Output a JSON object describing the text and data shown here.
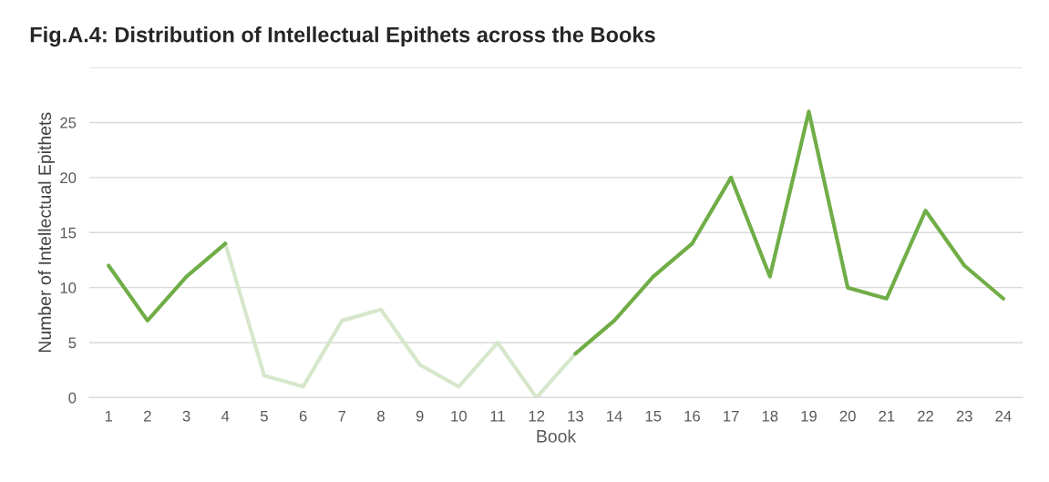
{
  "chart_data": {
    "type": "line",
    "title": "Fig.A.4: Distribution of Intellectual Epithets across the Books",
    "xlabel": "Book",
    "ylabel": "Number of Intellectual Epithets",
    "categories": [
      "1",
      "2",
      "3",
      "4",
      "5",
      "6",
      "7",
      "8",
      "9",
      "10",
      "11",
      "12",
      "13",
      "14",
      "15",
      "16",
      "17",
      "18",
      "19",
      "20",
      "21",
      "22",
      "23",
      "24"
    ],
    "series": [
      {
        "color": "#70ad47",
        "values": [
          12,
          7,
          11,
          14,
          null,
          null,
          null,
          null,
          null,
          null,
          null,
          null,
          4,
          7,
          11,
          14,
          20,
          11,
          26,
          10,
          9,
          17,
          12,
          9
        ]
      },
      {
        "color": "#d6e7cb",
        "values": [
          null,
          null,
          null,
          14,
          2,
          1,
          7,
          8,
          3,
          1,
          5,
          0,
          4,
          null,
          null,
          null,
          null,
          null,
          null,
          null,
          null,
          null,
          null,
          null
        ]
      }
    ],
    "ylim": [
      0,
      30
    ],
    "yticks": [
      0,
      5,
      10,
      15,
      20,
      25,
      {
        "value": 30,
        "label": null
      }
    ],
    "grid": "y",
    "line_style": "solid",
    "marker": "none"
  }
}
